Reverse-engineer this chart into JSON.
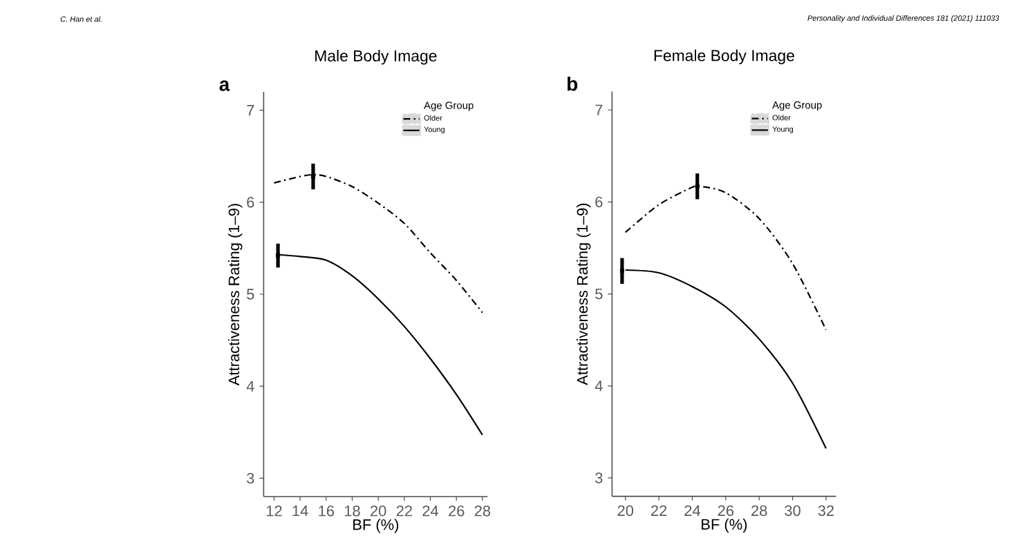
{
  "chart_data": [
    {
      "type": "line",
      "title": "Male Body Image",
      "xlabel": "BF (%)",
      "ylabel": "Attractiveness Rating (1–9)",
      "legend_title": "Age Group",
      "legend": "top right",
      "annotations": [
        "a",
        "C. Han et al."
      ],
      "xlim": [
        11.2,
        28.4
      ],
      "xticks": [
        12,
        14,
        16,
        18,
        20,
        22,
        24,
        26,
        28
      ],
      "ylim": [
        2.8,
        7.2
      ],
      "yticks": [
        3,
        4,
        5,
        6,
        7
      ],
      "series": [
        {
          "name": "Older",
          "color": "#000000",
          "line_style": "dashed",
          "x": [
            12,
            14,
            15,
            16,
            18,
            20,
            22,
            24,
            26,
            28
          ],
          "values": [
            6.21,
            6.28,
            6.3,
            6.28,
            6.17,
            5.99,
            5.77,
            5.45,
            5.15,
            4.8
          ]
        },
        {
          "name": "Young",
          "color": "#000000",
          "line_style": "solid",
          "x": [
            12.3,
            14,
            16,
            18,
            20,
            22,
            24,
            26,
            28
          ],
          "values": [
            5.43,
            5.41,
            5.37,
            5.2,
            4.95,
            4.65,
            4.3,
            3.91,
            3.47
          ]
        },
        {
          "type": "scatter",
          "color": "#000000",
          "marker": "square",
          "x": [
            15,
            12.3
          ],
          "values": [
            6.28,
            5.42
          ],
          "errors": [
            0.14,
            0.13
          ]
        }
      ]
    },
    {
      "type": "line",
      "title": "Female Body Image",
      "xlabel": "BF (%)",
      "ylabel": "Attractiveness Rating (1–9)",
      "legend_title": "Age Group",
      "legend": "top right",
      "annotations": [
        "b",
        "Personality and Individual Differences 181 (2021) 111033"
      ],
      "xlim": [
        19.2,
        32.6
      ],
      "xticks": [
        20,
        22,
        24,
        26,
        28,
        30,
        32
      ],
      "ylim": [
        2.8,
        7.2
      ],
      "yticks": [
        3,
        4,
        5,
        6,
        7
      ],
      "series": [
        {
          "name": "Older",
          "color": "#000000",
          "line_style": "dashed",
          "x": [
            20,
            22,
            24,
            24.5,
            26,
            28,
            30,
            32
          ],
          "values": [
            5.67,
            5.97,
            6.16,
            6.17,
            6.1,
            5.82,
            5.33,
            4.61
          ]
        },
        {
          "name": "Young",
          "color": "#000000",
          "line_style": "solid",
          "x": [
            20,
            22,
            24,
            26,
            28,
            30,
            32
          ],
          "values": [
            5.26,
            5.23,
            5.08,
            4.86,
            4.51,
            4.03,
            3.32
          ]
        },
        {
          "type": "scatter",
          "color": "#000000",
          "marker": "square",
          "x": [
            24.3,
            19.8
          ],
          "values": [
            6.17,
            5.25
          ],
          "errors": [
            0.14,
            0.14
          ]
        }
      ]
    }
  ]
}
